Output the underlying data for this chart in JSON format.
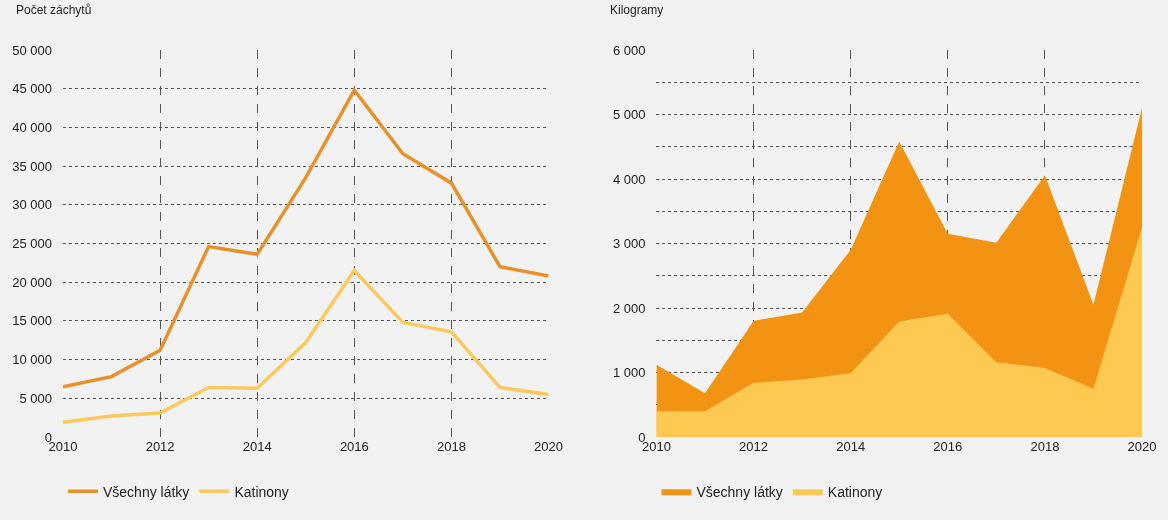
{
  "chart_data": [
    {
      "type": "line",
      "ylabel": "Počet záchytů",
      "x": [
        2010,
        2011,
        2012,
        2013,
        2014,
        2015,
        2016,
        2017,
        2018,
        2019,
        2020
      ],
      "series": [
        {
          "name": "Všechny látky",
          "color": "#e8912a",
          "values": [
            6500,
            7800,
            11200,
            24600,
            23600,
            33500,
            44800,
            36600,
            32800,
            22000,
            20800
          ]
        },
        {
          "name": "Katinony",
          "color": "#fcc95e",
          "values": [
            1900,
            2700,
            3100,
            6400,
            6300,
            12200,
            21500,
            14800,
            13600,
            6400,
            5500
          ]
        }
      ],
      "xlim": [
        2010,
        2020
      ],
      "xticks": [
        2010,
        2012,
        2014,
        2016,
        2018,
        2020
      ],
      "ylim": [
        0,
        50000
      ],
      "yticks": [
        0,
        {
          "value": 5000,
          "label": "5 000"
        },
        {
          "value": 10000,
          "label": "10 000"
        },
        {
          "value": 15000,
          "label": "15 000"
        },
        {
          "value": 20000,
          "label": "20 000"
        },
        {
          "value": 25000,
          "label": "25 000"
        },
        {
          "value": 30000,
          "label": "30 000"
        },
        {
          "value": 35000,
          "label": "35 000"
        },
        {
          "value": 40000,
          "label": "40 000"
        },
        {
          "value": 45000,
          "label": "45 000"
        },
        {
          "value": 50000,
          "label": "50 000"
        }
      ],
      "grid": true,
      "legend": "bottom left",
      "line_style": "solid"
    },
    {
      "type": "area",
      "ylabel": "Kilogramy",
      "x": [
        2010,
        2011,
        2012,
        2013,
        2014,
        2015,
        2016,
        2017,
        2018,
        2019,
        2020
      ],
      "series": [
        {
          "name": "Všechny látky",
          "color": "#f39313",
          "values": [
            1120,
            680,
            1800,
            1930,
            2900,
            4580,
            3150,
            3010,
            4060,
            2050,
            5100
          ]
        },
        {
          "name": "Katinony",
          "color": "#fec851",
          "values": [
            400,
            400,
            840,
            890,
            990,
            1790,
            1910,
            1160,
            1070,
            750,
            3250
          ]
        }
      ],
      "xlim": [
        2010,
        2020
      ],
      "xticks": [
        2010,
        2012,
        2014,
        2016,
        2018,
        2020
      ],
      "ylim": [
        0,
        6000
      ],
      "yticks": [
        0,
        {
          "value": 500,
          "label": null
        },
        {
          "value": 1000,
          "label": "1 000"
        },
        {
          "value": 1500,
          "label": null
        },
        {
          "value": 2000,
          "label": "2 000"
        },
        {
          "value": 2500,
          "label": null
        },
        {
          "value": 3000,
          "label": "3 000"
        },
        {
          "value": 3500,
          "label": null
        },
        {
          "value": 4000,
          "label": "4 000"
        },
        {
          "value": 4500,
          "label": null
        },
        {
          "value": 5000,
          "label": "5 000"
        },
        {
          "value": 5500,
          "label": null
        },
        {
          "value": 6000,
          "label": "6 000"
        }
      ],
      "grid": true,
      "legend": "bottom left"
    }
  ]
}
